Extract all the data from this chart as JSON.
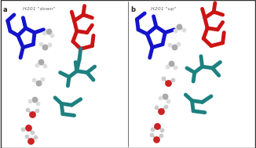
{
  "background": "#ffffff",
  "panel_a_label": "a",
  "panel_b_label": "b",
  "panel_a_title": "H201 \"down\"",
  "panel_b_title": "H201 \"up\"",
  "title_fontsize": 4.5,
  "label_fontsize": 6,
  "blue_color": "#1414cc",
  "red_color": "#cc1414",
  "teal_color": "#1e8080",
  "water_O_red": "#cc2222",
  "water_O_gray": "#999999",
  "water_H_gray": "#cccccc",
  "lw": 3.5,
  "border_color": "#333333"
}
